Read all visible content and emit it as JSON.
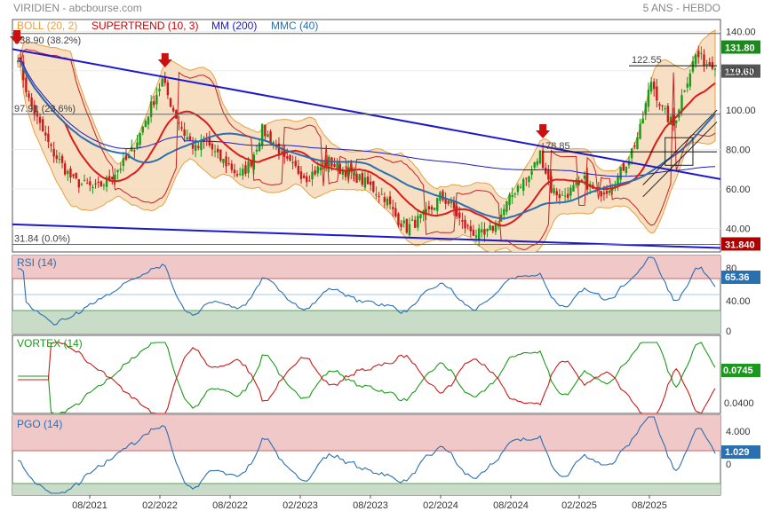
{
  "header": {
    "source": "VIRIDIEN - abcbourse.com",
    "period": "5 ANS - HEBDO"
  },
  "main_legend": [
    {
      "label": "BOLL (20, 2)",
      "color": "#e8a040"
    },
    {
      "label": "SUPERTREND (10, 3)",
      "color": "#cc0000"
    },
    {
      "label": "MM (200)",
      "color": "#1a1acc"
    },
    {
      "label": "MMC (40)",
      "color": "#2a6fb0"
    }
  ],
  "levels": [
    {
      "text": "138.90  (38.2%)",
      "value": 138.9
    },
    {
      "text": "97.91  (23.6%)",
      "value": 97.91
    },
    {
      "text": "31.84  (0.0%)",
      "value": 31.84
    }
  ],
  "annotations": [
    {
      "text": "122.55",
      "value": 122.55
    },
    {
      "text": "78.85",
      "value": 78.85
    }
  ],
  "badges": [
    {
      "text": "131.80",
      "value": 131.8,
      "color": "#1a8a1a"
    },
    {
      "text": "119.60",
      "value": 119.6,
      "color": "#555555"
    },
    {
      "text": "31.840",
      "value": 31.84,
      "color": "#b00000"
    }
  ],
  "panels": {
    "rsi": {
      "label": "RSI (14)",
      "last": "65.36",
      "badge_color": "#2a6fb0",
      "ticks": [
        "80",
        "40.00",
        "0"
      ]
    },
    "vortex": {
      "label": "VORTEX (14)",
      "last": "0.0745",
      "badge_color": "#1a9a1a",
      "ticks": [
        "0.0400"
      ]
    },
    "pgo": {
      "label": "PGO (14)",
      "last": "1.029",
      "badge_color": "#2a6fb0",
      "ticks": [
        "4.000",
        "0"
      ]
    }
  },
  "chart_data": {
    "type": "candlestick",
    "y_ticks": [
      "140.00",
      "120.00",
      "100.00",
      "80.00",
      "60.00",
      "40.00"
    ],
    "ylim": [
      28,
      146
    ],
    "x_labels": [
      "08/2021",
      "02/2022",
      "08/2022",
      "02/2023",
      "08/2023",
      "02/2024",
      "08/2024",
      "02/2025",
      "08/2025"
    ],
    "close_path": [
      [
        0,
        128
      ],
      [
        4,
        105
      ],
      [
        8,
        92
      ],
      [
        12,
        80
      ],
      [
        16,
        72
      ],
      [
        20,
        64
      ],
      [
        24,
        62
      ],
      [
        28,
        60
      ],
      [
        32,
        64
      ],
      [
        36,
        70
      ],
      [
        40,
        76
      ],
      [
        44,
        88
      ],
      [
        48,
        102
      ],
      [
        52,
        115
      ],
      [
        56,
        100
      ],
      [
        60,
        88
      ],
      [
        64,
        80
      ],
      [
        68,
        84
      ],
      [
        72,
        76
      ],
      [
        76,
        72
      ],
      [
        80,
        66
      ],
      [
        84,
        74
      ],
      [
        88,
        90
      ],
      [
        92,
        84
      ],
      [
        96,
        74
      ],
      [
        100,
        70
      ],
      [
        104,
        66
      ],
      [
        108,
        70
      ],
      [
        112,
        74
      ],
      [
        116,
        70
      ],
      [
        120,
        68
      ],
      [
        124,
        64
      ],
      [
        128,
        60
      ],
      [
        132,
        56
      ],
      [
        136,
        46
      ],
      [
        140,
        40
      ],
      [
        144,
        44
      ],
      [
        148,
        48
      ],
      [
        152,
        56
      ],
      [
        156,
        52
      ],
      [
        160,
        42
      ],
      [
        164,
        38
      ],
      [
        168,
        36
      ],
      [
        172,
        42
      ],
      [
        176,
        52
      ],
      [
        180,
        62
      ],
      [
        184,
        66
      ],
      [
        188,
        78
      ],
      [
        192,
        60
      ],
      [
        196,
        56
      ],
      [
        200,
        60
      ],
      [
        204,
        64
      ],
      [
        208,
        58
      ],
      [
        212,
        60
      ],
      [
        216,
        66
      ],
      [
        220,
        76
      ],
      [
        224,
        90
      ],
      [
        228,
        115
      ],
      [
        232,
        100
      ],
      [
        236,
        92
      ],
      [
        240,
        112
      ],
      [
        244,
        128
      ],
      [
        248,
        124
      ]
    ],
    "markers_down": [
      0,
      53,
      189
    ]
  }
}
